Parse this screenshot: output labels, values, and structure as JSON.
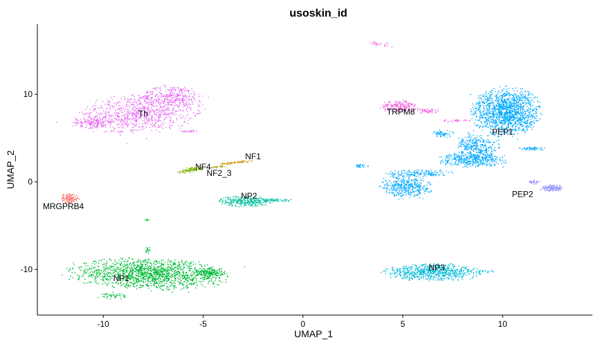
{
  "chart_data": {
    "type": "scatter",
    "title": "usoskin_id",
    "xlabel": "UMAP_1",
    "ylabel": "UMAP_2",
    "xlim": [
      -13.3,
      14.5
    ],
    "ylim": [
      -15.2,
      18.0
    ],
    "xticks": [
      -10,
      -5,
      0,
      5,
      10
    ],
    "yticks": [
      -10,
      0,
      10
    ],
    "grid": false,
    "legend": "none",
    "clusters": [
      {
        "label": "Th",
        "color": "#E76BF3",
        "label_x": -8.0,
        "label_y": 7.8,
        "regions": [
          {
            "x": -8.2,
            "y": 7.8,
            "rx": 3.0,
            "ry": 2.1,
            "rot": 18,
            "n": 900
          },
          {
            "x": -6.5,
            "y": 9.8,
            "rx": 1.6,
            "ry": 1.2,
            "rot": 0,
            "n": 260
          },
          {
            "x": -10.5,
            "y": 6.8,
            "rx": 0.9,
            "ry": 0.6,
            "rot": 0,
            "n": 120
          },
          {
            "x": -5.7,
            "y": 5.8,
            "rx": 0.5,
            "ry": 0.12,
            "rot": 0,
            "n": 25
          }
        ]
      },
      {
        "label": "MRGPRB4",
        "color": "#F8766D",
        "label_x": -12.0,
        "label_y": -2.8,
        "regions": [
          {
            "x": -11.7,
            "y": -1.9,
            "rx": 0.45,
            "ry": 0.55,
            "rot": 0,
            "n": 130
          }
        ]
      },
      {
        "label": "NF4",
        "color": "#7CAE00",
        "label_x": -5.0,
        "label_y": 1.7,
        "regions": [
          {
            "x": -5.6,
            "y": 1.4,
            "rx": 0.65,
            "ry": 0.25,
            "rot": 25,
            "n": 90
          }
        ]
      },
      {
        "label": "NF1",
        "color": "#CD9600",
        "label_x": -2.5,
        "label_y": 2.9,
        "regions": [
          {
            "x": -3.4,
            "y": 2.2,
            "rx": 0.85,
            "ry": 0.13,
            "rot": 12,
            "n": 70
          }
        ]
      },
      {
        "label": "NF2_3",
        "color": "#ABA300",
        "label_x": -4.2,
        "label_y": 1.0,
        "regions": [
          {
            "x": -4.3,
            "y": 1.7,
            "rx": 0.5,
            "ry": 0.1,
            "rot": 12,
            "n": 25
          }
        ]
      },
      {
        "label": "NP2",
        "color": "#00BFA0",
        "label_x": -2.7,
        "label_y": -1.6,
        "regions": [
          {
            "x": -2.9,
            "y": -2.2,
            "rx": 1.2,
            "ry": 0.6,
            "rot": 0,
            "n": 300
          },
          {
            "x": -1.3,
            "y": -2.1,
            "rx": 0.7,
            "ry": 0.2,
            "rot": 0,
            "n": 60
          }
        ]
      },
      {
        "label": "NP1",
        "color": "#00BA38",
        "label_x": -9.1,
        "label_y": -11.0,
        "regions": [
          {
            "x": -7.7,
            "y": -10.5,
            "rx": 3.7,
            "ry": 1.6,
            "rot": -5,
            "n": 1500
          },
          {
            "x": -4.6,
            "y": -10.4,
            "rx": 0.7,
            "ry": 0.6,
            "rot": 0,
            "n": 150
          },
          {
            "x": -9.5,
            "y": -13.0,
            "rx": 0.6,
            "ry": 0.4,
            "rot": 0,
            "n": 45
          },
          {
            "x": -7.8,
            "y": -7.8,
            "rx": 0.12,
            "ry": 0.4,
            "rot": 0,
            "n": 15
          },
          {
            "x": -7.8,
            "y": -4.3,
            "rx": 0.12,
            "ry": 0.15,
            "rot": 0,
            "n": 8
          }
        ]
      },
      {
        "label": "NP3",
        "color": "#00BCD8",
        "label_x": 6.7,
        "label_y": -9.8,
        "regions": [
          {
            "x": 6.5,
            "y": -10.3,
            "rx": 2.3,
            "ry": 0.9,
            "rot": 0,
            "n": 700
          },
          {
            "x": 9.1,
            "y": -10.2,
            "rx": 0.6,
            "ry": 0.15,
            "rot": 0,
            "n": 20
          }
        ]
      },
      {
        "label": "TRPM8",
        "color": "#F564E3",
        "label_x": 4.9,
        "label_y": 8.0,
        "regions": [
          {
            "x": 4.8,
            "y": 8.6,
            "rx": 0.9,
            "ry": 0.65,
            "rot": 0,
            "n": 200
          },
          {
            "x": 6.3,
            "y": 8.1,
            "rx": 0.55,
            "ry": 0.3,
            "rot": 0,
            "n": 50
          },
          {
            "x": 3.9,
            "y": 15.7,
            "rx": 0.6,
            "ry": 0.25,
            "rot": -20,
            "n": 25
          },
          {
            "x": 7.5,
            "y": 7.0,
            "rx": 0.8,
            "ry": 0.15,
            "rot": 0,
            "n": 30
          }
        ]
      },
      {
        "label": "PEP1",
        "color": "#00A9FF",
        "label_x": 10.0,
        "label_y": 5.7,
        "regions": [
          {
            "x": 10.2,
            "y": 8.0,
            "rx": 1.6,
            "ry": 2.6,
            "rot": 0,
            "n": 1400
          },
          {
            "x": 8.7,
            "y": 4.0,
            "rx": 1.0,
            "ry": 1.4,
            "rot": 0,
            "n": 300
          },
          {
            "x": 8.5,
            "y": 2.5,
            "rx": 1.6,
            "ry": 0.8,
            "rot": 0,
            "n": 380
          },
          {
            "x": 5.8,
            "y": 1.0,
            "rx": 1.5,
            "ry": 0.4,
            "rot": 0,
            "n": 140
          },
          {
            "x": 5.2,
            "y": -0.5,
            "rx": 1.2,
            "ry": 1.3,
            "rot": 0,
            "n": 400
          },
          {
            "x": 7.0,
            "y": 5.5,
            "rx": 0.5,
            "ry": 0.4,
            "rot": 0,
            "n": 60
          },
          {
            "x": 11.5,
            "y": 3.8,
            "rx": 0.6,
            "ry": 0.2,
            "rot": 0,
            "n": 50
          },
          {
            "x": 2.9,
            "y": 1.8,
            "rx": 0.4,
            "ry": 0.2,
            "rot": 0,
            "n": 30
          }
        ]
      },
      {
        "label": "PEP2",
        "color": "#9590FF",
        "label_x": 11.0,
        "label_y": -1.4,
        "regions": [
          {
            "x": 12.5,
            "y": -0.7,
            "rx": 0.55,
            "ry": 0.35,
            "rot": 0,
            "n": 130
          },
          {
            "x": 11.6,
            "y": 0.0,
            "rx": 0.3,
            "ry": 0.25,
            "rot": 0,
            "n": 30
          }
        ]
      }
    ]
  }
}
